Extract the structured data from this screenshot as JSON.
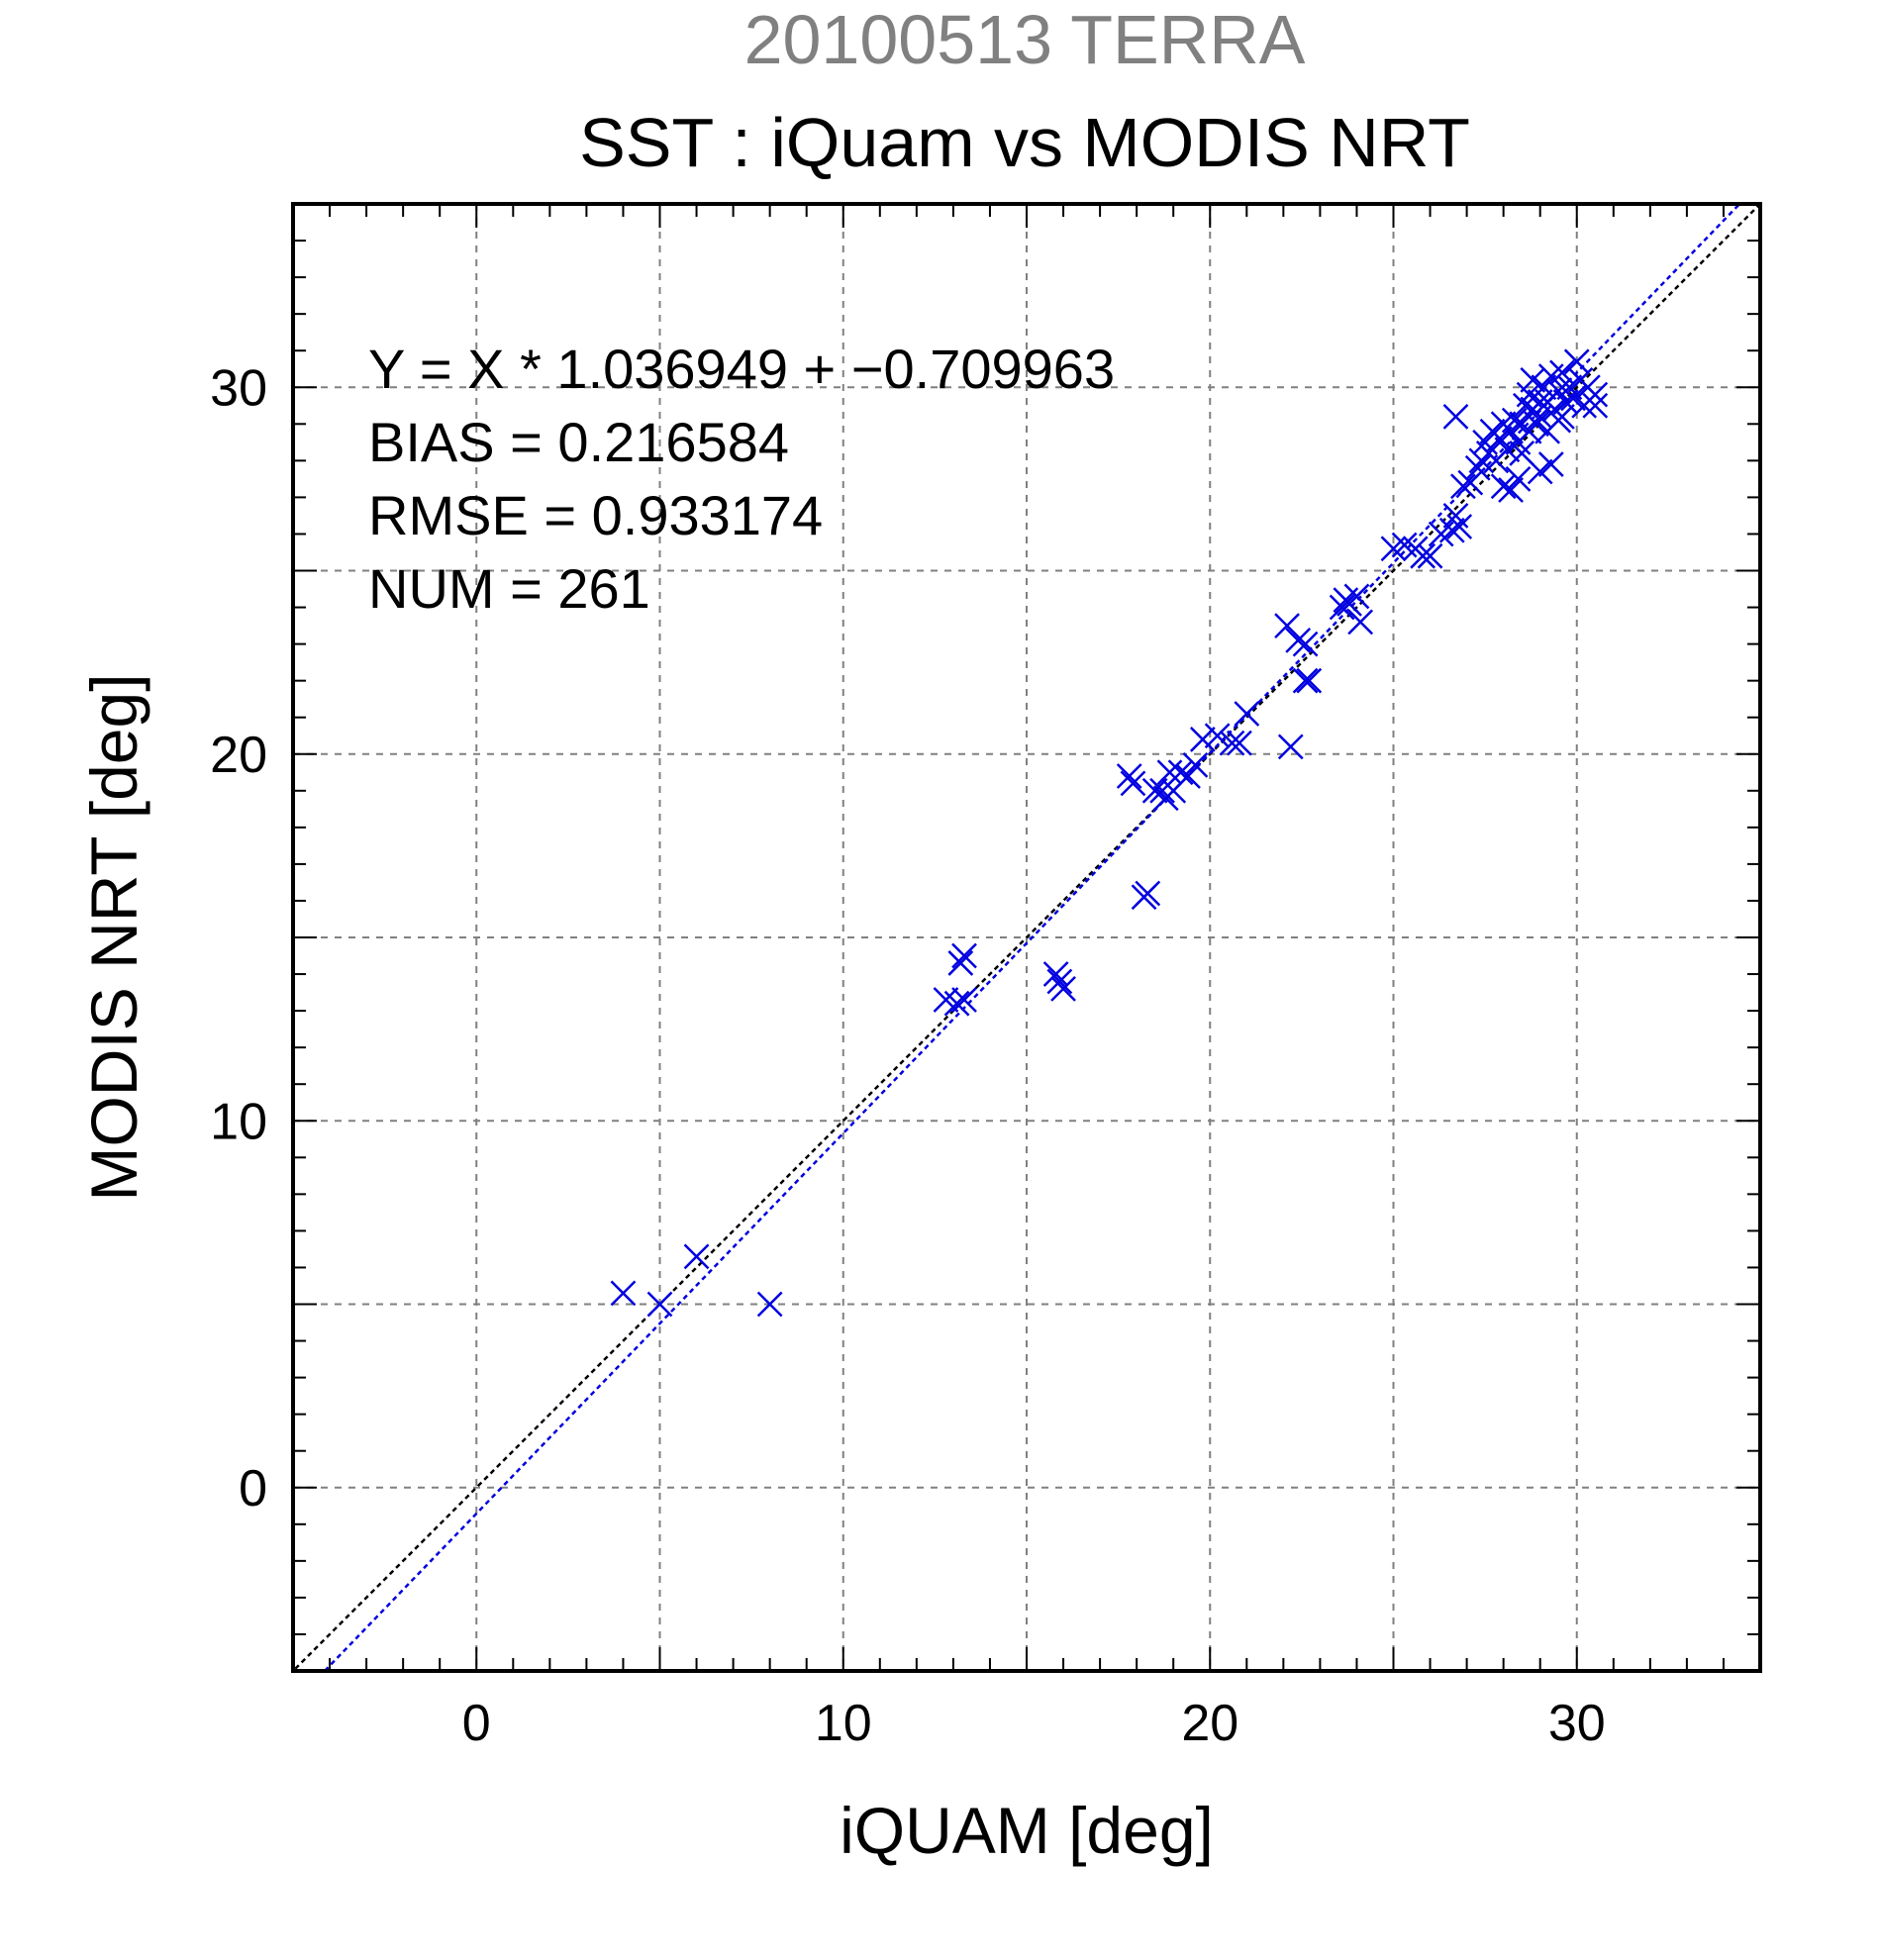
{
  "chart_data": {
    "type": "scatter",
    "title_top": "20100513 TERRA",
    "title": "SST : iQuam vs MODIS NRT",
    "xlabel": "iQUAM [deg]",
    "ylabel": "MODIS NRT [deg]",
    "xlim": [
      -5,
      35
    ],
    "ylim": [
      -5,
      35
    ],
    "xticks": [
      0,
      10,
      20,
      30
    ],
    "yticks": [
      0,
      10,
      20,
      30
    ],
    "grid": true,
    "marker": "x",
    "colors": {
      "points": "#0000e0",
      "fit_line": "#0000e0",
      "identity_line": "#000000",
      "grid": "#808080"
    },
    "stats": [
      "Y = X * 1.036949 + −0.709963",
      "BIAS = 0.216584",
      "RMSE = 0.933174",
      "NUM = 261"
    ],
    "fit": {
      "slope": 1.036949,
      "intercept": -0.709963
    },
    "points": [
      [
        4.0,
        5.3
      ],
      [
        5.0,
        5.0
      ],
      [
        6.0,
        6.3
      ],
      [
        8.0,
        5.0
      ],
      [
        12.8,
        13.3
      ],
      [
        13.1,
        13.2
      ],
      [
        13.2,
        14.3
      ],
      [
        13.3,
        13.3
      ],
      [
        13.3,
        14.5
      ],
      [
        15.8,
        14.0
      ],
      [
        15.9,
        13.8
      ],
      [
        16.0,
        13.6
      ],
      [
        18.2,
        16.1
      ],
      [
        18.3,
        16.2
      ],
      [
        17.8,
        19.4
      ],
      [
        17.9,
        19.2
      ],
      [
        18.5,
        19.0
      ],
      [
        18.7,
        19.0
      ],
      [
        18.8,
        18.8
      ],
      [
        18.9,
        19.5
      ],
      [
        19.0,
        19.0
      ],
      [
        19.2,
        19.5
      ],
      [
        19.4,
        19.4
      ],
      [
        19.6,
        19.7
      ],
      [
        19.8,
        20.4
      ],
      [
        20.2,
        20.5
      ],
      [
        20.6,
        20.3
      ],
      [
        20.8,
        20.3
      ],
      [
        21.0,
        21.1
      ],
      [
        22.2,
        20.2
      ],
      [
        22.1,
        23.5
      ],
      [
        22.4,
        23.1
      ],
      [
        22.6,
        23.0
      ],
      [
        22.6,
        22.0
      ],
      [
        22.7,
        22.0
      ],
      [
        23.6,
        24.0
      ],
      [
        23.7,
        24.2
      ],
      [
        23.8,
        24.1
      ],
      [
        24.0,
        24.3
      ],
      [
        24.1,
        23.6
      ],
      [
        25.0,
        25.6
      ],
      [
        25.3,
        25.7
      ],
      [
        25.6,
        25.6
      ],
      [
        25.8,
        25.4
      ],
      [
        26.0,
        25.4
      ],
      [
        26.3,
        26.0
      ],
      [
        26.6,
        26.1
      ],
      [
        26.7,
        26.5
      ],
      [
        26.8,
        26.2
      ],
      [
        26.7,
        29.2
      ],
      [
        26.9,
        27.3
      ],
      [
        27.1,
        27.4
      ],
      [
        27.3,
        27.8
      ],
      [
        27.4,
        28.0
      ],
      [
        27.5,
        28.5
      ],
      [
        27.6,
        28.2
      ],
      [
        27.7,
        28.8
      ],
      [
        27.8,
        28.0
      ],
      [
        27.9,
        28.6
      ],
      [
        28.0,
        27.3
      ],
      [
        28.0,
        29.0
      ],
      [
        28.1,
        28.3
      ],
      [
        28.2,
        28.8
      ],
      [
        28.2,
        27.2
      ],
      [
        28.3,
        29.1
      ],
      [
        28.4,
        28.5
      ],
      [
        28.5,
        29.0
      ],
      [
        28.5,
        28.2
      ],
      [
        28.6,
        29.5
      ],
      [
        28.7,
        29.8
      ],
      [
        28.7,
        28.8
      ],
      [
        28.8,
        30.2
      ],
      [
        28.9,
        29.0
      ],
      [
        29.0,
        29.6
      ],
      [
        29.0,
        27.7
      ],
      [
        29.1,
        30.0
      ],
      [
        29.2,
        28.8
      ],
      [
        29.2,
        29.6
      ],
      [
        29.3,
        30.3
      ],
      [
        29.3,
        27.9
      ],
      [
        29.4,
        29.4
      ],
      [
        29.5,
        29.9
      ],
      [
        29.5,
        29.1
      ],
      [
        29.6,
        30.4
      ],
      [
        29.7,
        29.6
      ],
      [
        29.8,
        30.0
      ],
      [
        29.9,
        29.7
      ],
      [
        30.0,
        30.7
      ],
      [
        30.1,
        30.2
      ],
      [
        30.2,
        29.5
      ],
      [
        30.3,
        30.0
      ],
      [
        30.5,
        29.8
      ],
      [
        30.5,
        29.5
      ],
      [
        29.0,
        29.2
      ],
      [
        28.8,
        29.4
      ],
      [
        29.6,
        29.2
      ],
      [
        28.4,
        27.5
      ]
    ]
  }
}
